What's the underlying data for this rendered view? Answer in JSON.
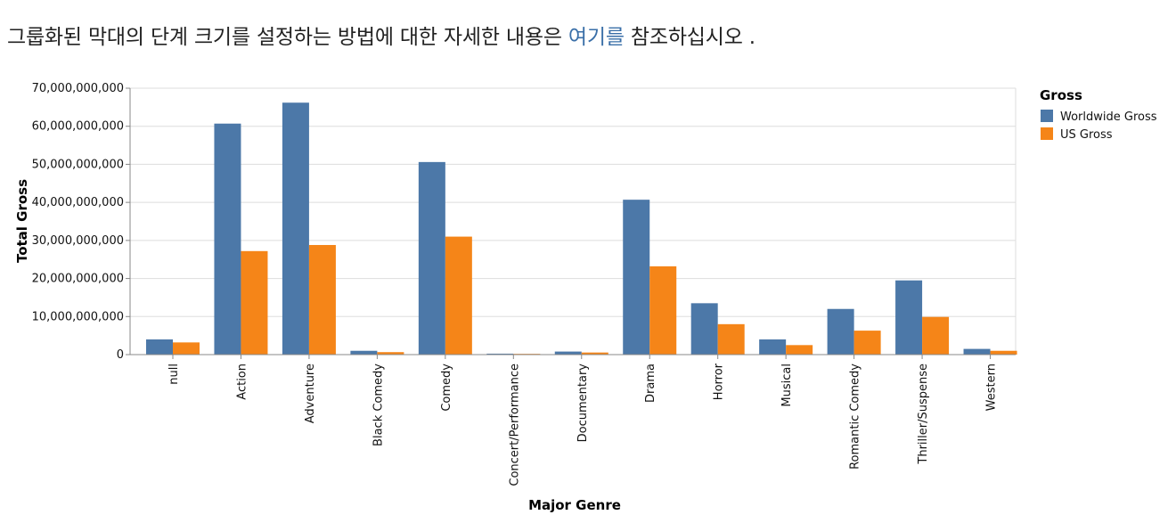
{
  "intro": {
    "text_before": "그룹화된 막대의 단계 크기를 설정하는 방법에 대한 자세한 내용은 ",
    "link_text": "여기를",
    "text_after": " 참조하십시오 ."
  },
  "colors": {
    "worldwide": "#4c78a8",
    "us": "#f58518",
    "grid": "#dddddd",
    "axis": "#888888"
  },
  "chart_data": {
    "type": "bar",
    "xlabel": "Major Genre",
    "ylabel": "Total Gross",
    "ylim": [
      0,
      70000000000
    ],
    "yticks": [
      0,
      10000000000,
      20000000000,
      30000000000,
      40000000000,
      50000000000,
      60000000000,
      70000000000
    ],
    "grid": true,
    "legend_title": "Gross",
    "legend_position": "top-right",
    "categories": [
      "null",
      "Action",
      "Adventure",
      "Black Comedy",
      "Comedy",
      "Concert/Performance",
      "Documentary",
      "Drama",
      "Horror",
      "Musical",
      "Romantic Comedy",
      "Thriller/Suspense",
      "Western"
    ],
    "series": [
      {
        "name": "Worldwide Gross",
        "color": "#4c78a8",
        "values": [
          4000000000,
          60700000000,
          66200000000,
          1000000000,
          50600000000,
          250000000,
          800000000,
          40700000000,
          13500000000,
          4000000000,
          12000000000,
          19500000000,
          1500000000
        ]
      },
      {
        "name": "US Gross",
        "color": "#f58518",
        "values": [
          3200000000,
          27200000000,
          28800000000,
          650000000,
          31000000000,
          200000000,
          550000000,
          23200000000,
          8000000000,
          2500000000,
          6300000000,
          9900000000,
          1000000000
        ]
      }
    ]
  }
}
